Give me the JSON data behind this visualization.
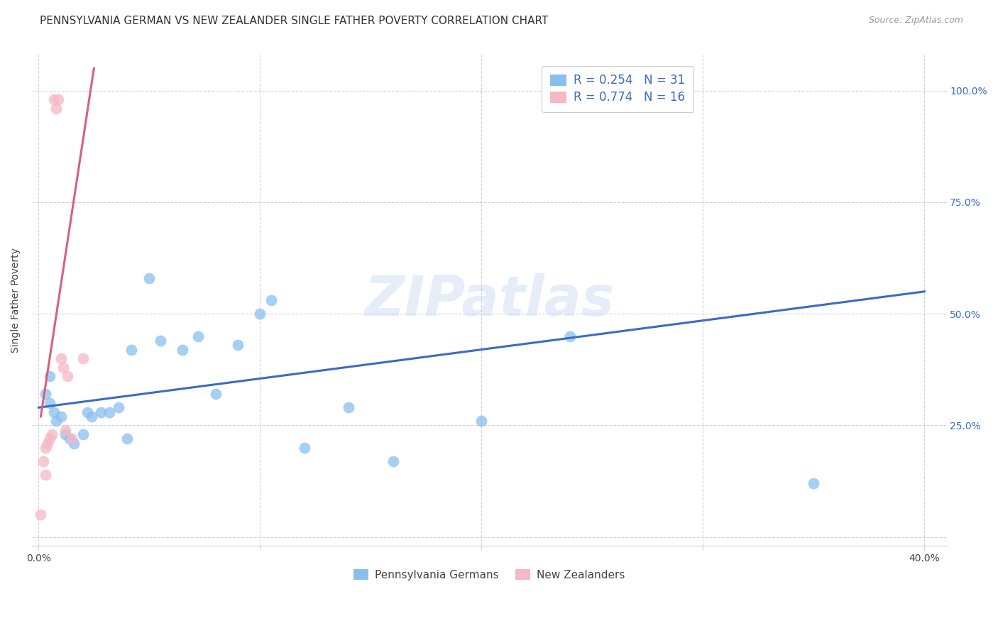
{
  "title": "PENNSYLVANIA GERMAN VS NEW ZEALANDER SINGLE FATHER POVERTY CORRELATION CHART",
  "source": "Source: ZipAtlas.com",
  "ylabel": "Single Father Poverty",
  "watermark": "ZIPatlas",
  "blue_color": "#89bfef",
  "pink_color": "#f5b8c4",
  "trendline_blue": "#3a6bc7",
  "trendline_pink": "#d9607a",
  "legend_text_blue": "R = 0.254   N = 31",
  "legend_text_pink": "R = 0.774   N = 16",
  "legend_label_blue": "Pennsylvania Germans",
  "legend_label_pink": "New Zealanders",
  "blue_scatter_x": [
    0.003,
    0.005,
    0.005,
    0.007,
    0.008,
    0.01,
    0.012,
    0.014,
    0.016,
    0.02,
    0.022,
    0.024,
    0.028,
    0.032,
    0.036,
    0.04,
    0.042,
    0.05,
    0.055,
    0.065,
    0.072,
    0.08,
    0.09,
    0.1,
    0.105,
    0.12,
    0.14,
    0.16,
    0.2,
    0.24,
    0.35
  ],
  "blue_scatter_y": [
    0.32,
    0.36,
    0.3,
    0.28,
    0.26,
    0.27,
    0.23,
    0.22,
    0.21,
    0.23,
    0.28,
    0.27,
    0.28,
    0.28,
    0.29,
    0.22,
    0.42,
    0.58,
    0.44,
    0.42,
    0.45,
    0.32,
    0.43,
    0.5,
    0.53,
    0.2,
    0.29,
    0.17,
    0.26,
    0.45,
    0.12
  ],
  "pink_scatter_x": [
    0.001,
    0.002,
    0.003,
    0.003,
    0.004,
    0.005,
    0.006,
    0.007,
    0.008,
    0.009,
    0.01,
    0.011,
    0.012,
    0.013,
    0.015,
    0.02
  ],
  "pink_scatter_y": [
    0.05,
    0.17,
    0.14,
    0.2,
    0.21,
    0.22,
    0.23,
    0.98,
    0.96,
    0.98,
    0.4,
    0.38,
    0.24,
    0.36,
    0.22,
    0.4
  ],
  "blue_trendline_x": [
    0.0,
    0.4
  ],
  "blue_trendline_y": [
    0.29,
    0.55
  ],
  "pink_trendline_x": [
    0.001,
    0.025
  ],
  "pink_trendline_y": [
    0.27,
    1.05
  ],
  "xlim": [
    -0.003,
    0.41
  ],
  "ylim": [
    -0.02,
    1.08
  ],
  "ytick_vals": [
    0.0,
    0.25,
    0.5,
    0.75,
    1.0
  ],
  "ytick_labels_right": [
    "",
    "25.0%",
    "50.0%",
    "75.0%",
    "100.0%"
  ],
  "xtick_vals": [
    0.0,
    0.1,
    0.2,
    0.3,
    0.4
  ],
  "xtick_labels": [
    "0.0%",
    "",
    "",
    "",
    "40.0%"
  ],
  "bg_color": "#ffffff",
  "grid_color": "#d0d0e0",
  "title_fontsize": 11,
  "axis_fontsize": 10,
  "right_tick_color": "#3a6bc7"
}
